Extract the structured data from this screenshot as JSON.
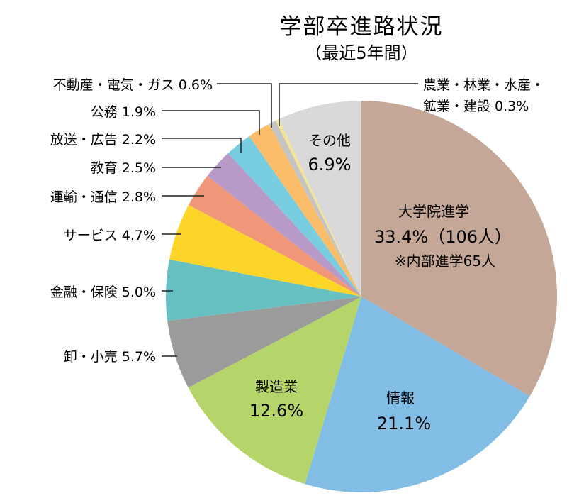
{
  "chart_data": {
    "type": "pie",
    "title": "学部卒進路状況",
    "subtitle": "（最近5年間）",
    "slices": [
      {
        "name": "大学院進学",
        "value": 33.4,
        "percent_label": "33.4%（106人）",
        "note": "※内部進学65人",
        "color": "#c4a797"
      },
      {
        "name": "情報",
        "value": 21.1,
        "percent_label": "21.1%",
        "color": "#82bde6"
      },
      {
        "name": "製造業",
        "value": 12.6,
        "percent_label": "12.6%",
        "color": "#b5d46a"
      },
      {
        "name": "卸・小売",
        "value": 5.7,
        "percent_label": "5.7%",
        "color": "#9b9b9b"
      },
      {
        "name": "金融・保険",
        "value": 5.0,
        "percent_label": "5.0%",
        "color": "#67c1c3"
      },
      {
        "name": "サービス",
        "value": 4.7,
        "percent_label": "4.7%",
        "color": "#fbd629"
      },
      {
        "name": "運輸・通信",
        "value": 2.8,
        "percent_label": "2.8%",
        "color": "#f0977a"
      },
      {
        "name": "教育",
        "value": 2.5,
        "percent_label": "2.5%",
        "color": "#b79ac7"
      },
      {
        "name": "放送・広告",
        "value": 2.2,
        "percent_label": "2.2%",
        "color": "#79cde0"
      },
      {
        "name": "公務",
        "value": 1.9,
        "percent_label": "1.9%",
        "color": "#fbbd6a"
      },
      {
        "name": "不動産・電気・ガス",
        "value": 0.6,
        "percent_label": "0.6%",
        "color": "#c4c4c4"
      },
      {
        "name": "農業・林業・水産・鉱業・建設",
        "value": 0.3,
        "percent_label": "0.3%",
        "color": "#f4e496"
      },
      {
        "name": "その他",
        "value": 6.9,
        "percent_label": "6.9%",
        "color": "#d9d9d9"
      }
    ],
    "ext_labels": {
      "fudosan": "不動産・電気・ガス 0.6%",
      "nogyo_1": "農業・林業・水産・",
      "nogyo_2": "鉱業・建設 0.3%",
      "komu": "公務 1.9%",
      "hoso": "放送・広告 2.2%",
      "kyoiku": "教育 2.5%",
      "unyu": "運輸・通信 2.8%",
      "service": "サービス 4.7%",
      "kinyu": "金融・保険 5.0%",
      "oroshi": "卸・小売 5.7%"
    }
  }
}
